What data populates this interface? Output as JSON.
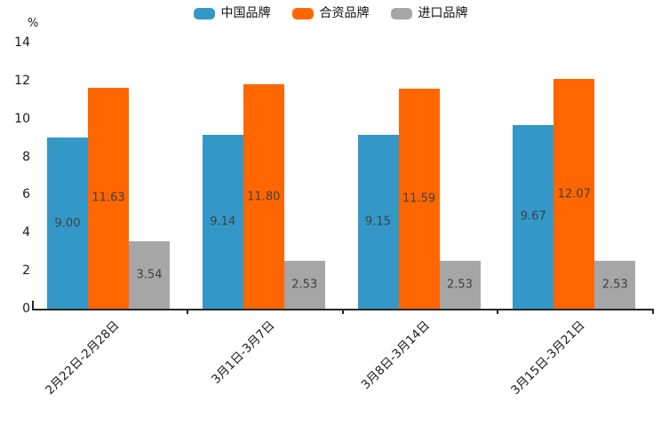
{
  "legend": {
    "items": [
      {
        "label": "中国品牌",
        "color": "#3398C8"
      },
      {
        "label": "合资品牌",
        "color": "#FF6600"
      },
      {
        "label": "进口品牌",
        "color": "#A6A6A6"
      }
    ]
  },
  "chart_data": {
    "type": "bar",
    "title": "",
    "xlabel": "",
    "ylabel": "%",
    "categories": [
      "2月22日-2月28日",
      "3月1日-3月7日",
      "3月8日-3月14日",
      "3月15日-3月21日"
    ],
    "series": [
      {
        "name": "中国品牌",
        "color": "#3398C8",
        "values": [
          9.0,
          9.14,
          9.15,
          9.67
        ],
        "labels": [
          "9.00",
          "9.14",
          "9.15",
          "9.67"
        ]
      },
      {
        "name": "合资品牌",
        "color": "#FF6600",
        "values": [
          11.63,
          11.8,
          11.59,
          12.07
        ],
        "labels": [
          "11.63",
          "11.80",
          "11.59",
          "12.07"
        ]
      },
      {
        "name": "进口品牌",
        "color": "#A6A6A6",
        "values": [
          3.54,
          2.53,
          2.53,
          2.53
        ],
        "labels": [
          "3.54",
          "2.53",
          "2.53",
          "2.53"
        ]
      }
    ],
    "ylim": [
      0,
      14
    ],
    "yticks": [
      0,
      2,
      4,
      6,
      8,
      10,
      12,
      14
    ],
    "grid": false,
    "legend_position": "top",
    "value_label_color": "#404040",
    "axis_color": "#262626"
  }
}
